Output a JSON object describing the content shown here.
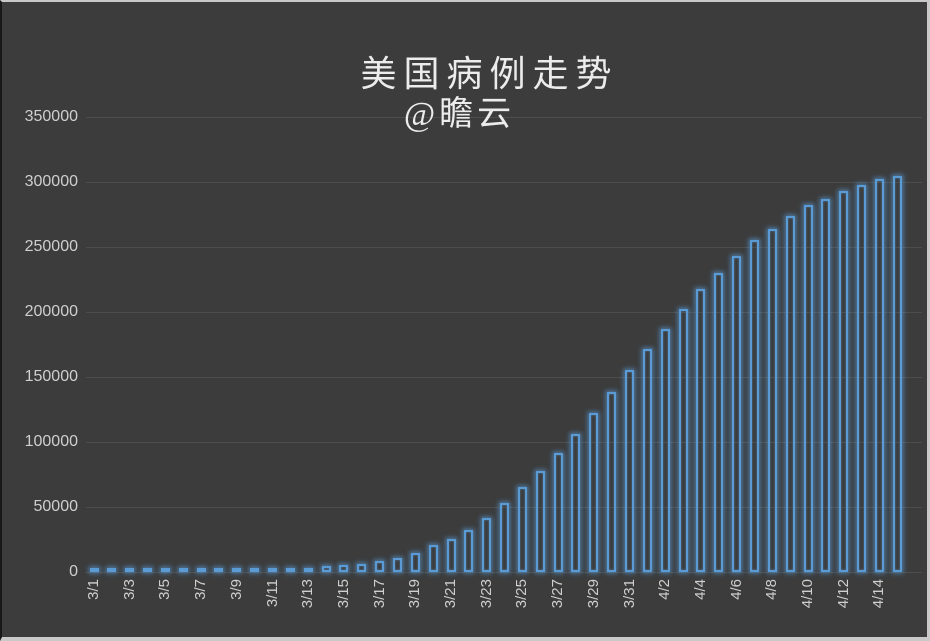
{
  "chart": {
    "title": "美国病例走势",
    "subtitle": "@瞻云"
  },
  "chart_data": {
    "type": "bar",
    "title": "美国病例走势",
    "subtitle": "@瞻云",
    "xlabel": "",
    "ylabel": "",
    "categories": [
      "3/1",
      "3/2",
      "3/3",
      "3/4",
      "3/5",
      "3/6",
      "3/7",
      "3/8",
      "3/9",
      "3/10",
      "3/11",
      "3/12",
      "3/13",
      "3/14",
      "3/15",
      "3/16",
      "3/17",
      "3/18",
      "3/19",
      "3/20",
      "3/21",
      "3/22",
      "3/23",
      "3/24",
      "3/25",
      "3/26",
      "3/27",
      "3/28",
      "3/29",
      "3/30",
      "3/31",
      "4/1",
      "4/2",
      "4/3",
      "4/4",
      "4/5",
      "4/6",
      "4/7",
      "4/8",
      "4/9",
      "4/10",
      "4/11",
      "4/12",
      "4/13",
      "4/14",
      "4/15"
    ],
    "values": [
      100,
      200,
      300,
      400,
      500,
      700,
      900,
      1100,
      1400,
      1700,
      2000,
      2500,
      3100,
      4400,
      5200,
      6000,
      8400,
      10800,
      14600,
      20800,
      25500,
      32300,
      41500,
      53000,
      65400,
      77700,
      91500,
      106000,
      122000,
      138500,
      155400,
      171500,
      187000,
      202300,
      217700,
      230000,
      243000,
      255400,
      264000,
      273800,
      282000,
      287000,
      293000,
      297700,
      302000,
      305000
    ],
    "x_tick_labels": [
      "3/1",
      "3/3",
      "3/5",
      "3/7",
      "3/9",
      "3/11",
      "3/13",
      "3/15",
      "3/17",
      "3/19",
      "3/21",
      "3/23",
      "3/25",
      "3/27",
      "3/29",
      "3/31",
      "4/2",
      "4/4",
      "4/6",
      "4/8",
      "4/10",
      "4/12",
      "4/14"
    ],
    "x_tick_every": 2,
    "y_ticks": [
      0,
      50000,
      100000,
      150000,
      200000,
      250000,
      300000,
      350000
    ],
    "y_tick_labels": [
      "0",
      "50000",
      "100000",
      "150000",
      "200000",
      "250000",
      "300000",
      "350000"
    ],
    "ylim": [
      0,
      350000
    ],
    "grid": true,
    "legend": false,
    "bar_style": "hollow-outline-glow",
    "x_label_rotation": -90,
    "colors": {
      "bar_stroke": "#5B9BD5",
      "bar_glow": "rgba(91,155,213,0.65)",
      "background": "#3C3C3C",
      "gridline": "#4D4D4D",
      "axis_text": "#CFCFCF",
      "title_text": "#ECECEC"
    }
  }
}
